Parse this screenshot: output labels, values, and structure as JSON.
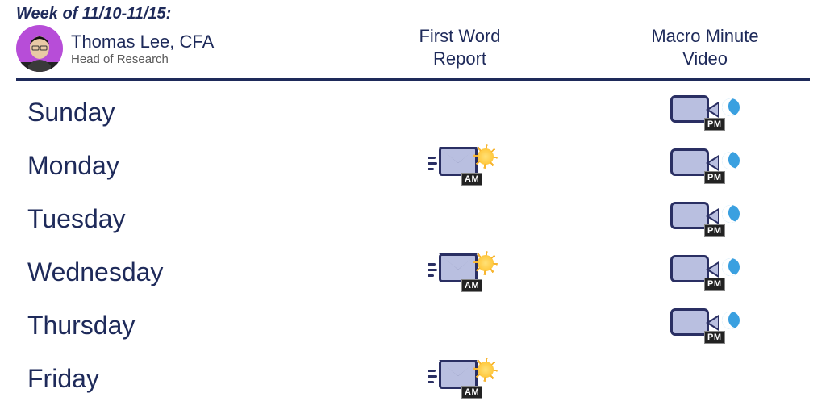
{
  "week_label": "Week of 11/10-11/15:",
  "author": {
    "name": "Thomas Lee, CFA",
    "role": "Head of Research"
  },
  "columns": {
    "report": "First Word\nReport",
    "video": "Macro Minute\nVideo"
  },
  "tags": {
    "am": "AM",
    "pm": "PM"
  },
  "colors": {
    "text": "#1e2a5a",
    "rule": "#1e2a5a",
    "icon_fill": "#b9bfe0",
    "icon_stroke": "#2a2f63",
    "avatar_bg": "#b74dd8",
    "sun": "#ffc83d",
    "moon": "#3aa0e0",
    "background": "#ffffff"
  },
  "days": [
    {
      "name": "Sunday",
      "report_am": false,
      "video_pm": true
    },
    {
      "name": "Monday",
      "report_am": true,
      "video_pm": true
    },
    {
      "name": "Tuesday",
      "report_am": false,
      "video_pm": true
    },
    {
      "name": "Wednesday",
      "report_am": true,
      "video_pm": true
    },
    {
      "name": "Thursday",
      "report_am": false,
      "video_pm": true
    },
    {
      "name": "Friday",
      "report_am": true,
      "video_pm": false
    }
  ]
}
